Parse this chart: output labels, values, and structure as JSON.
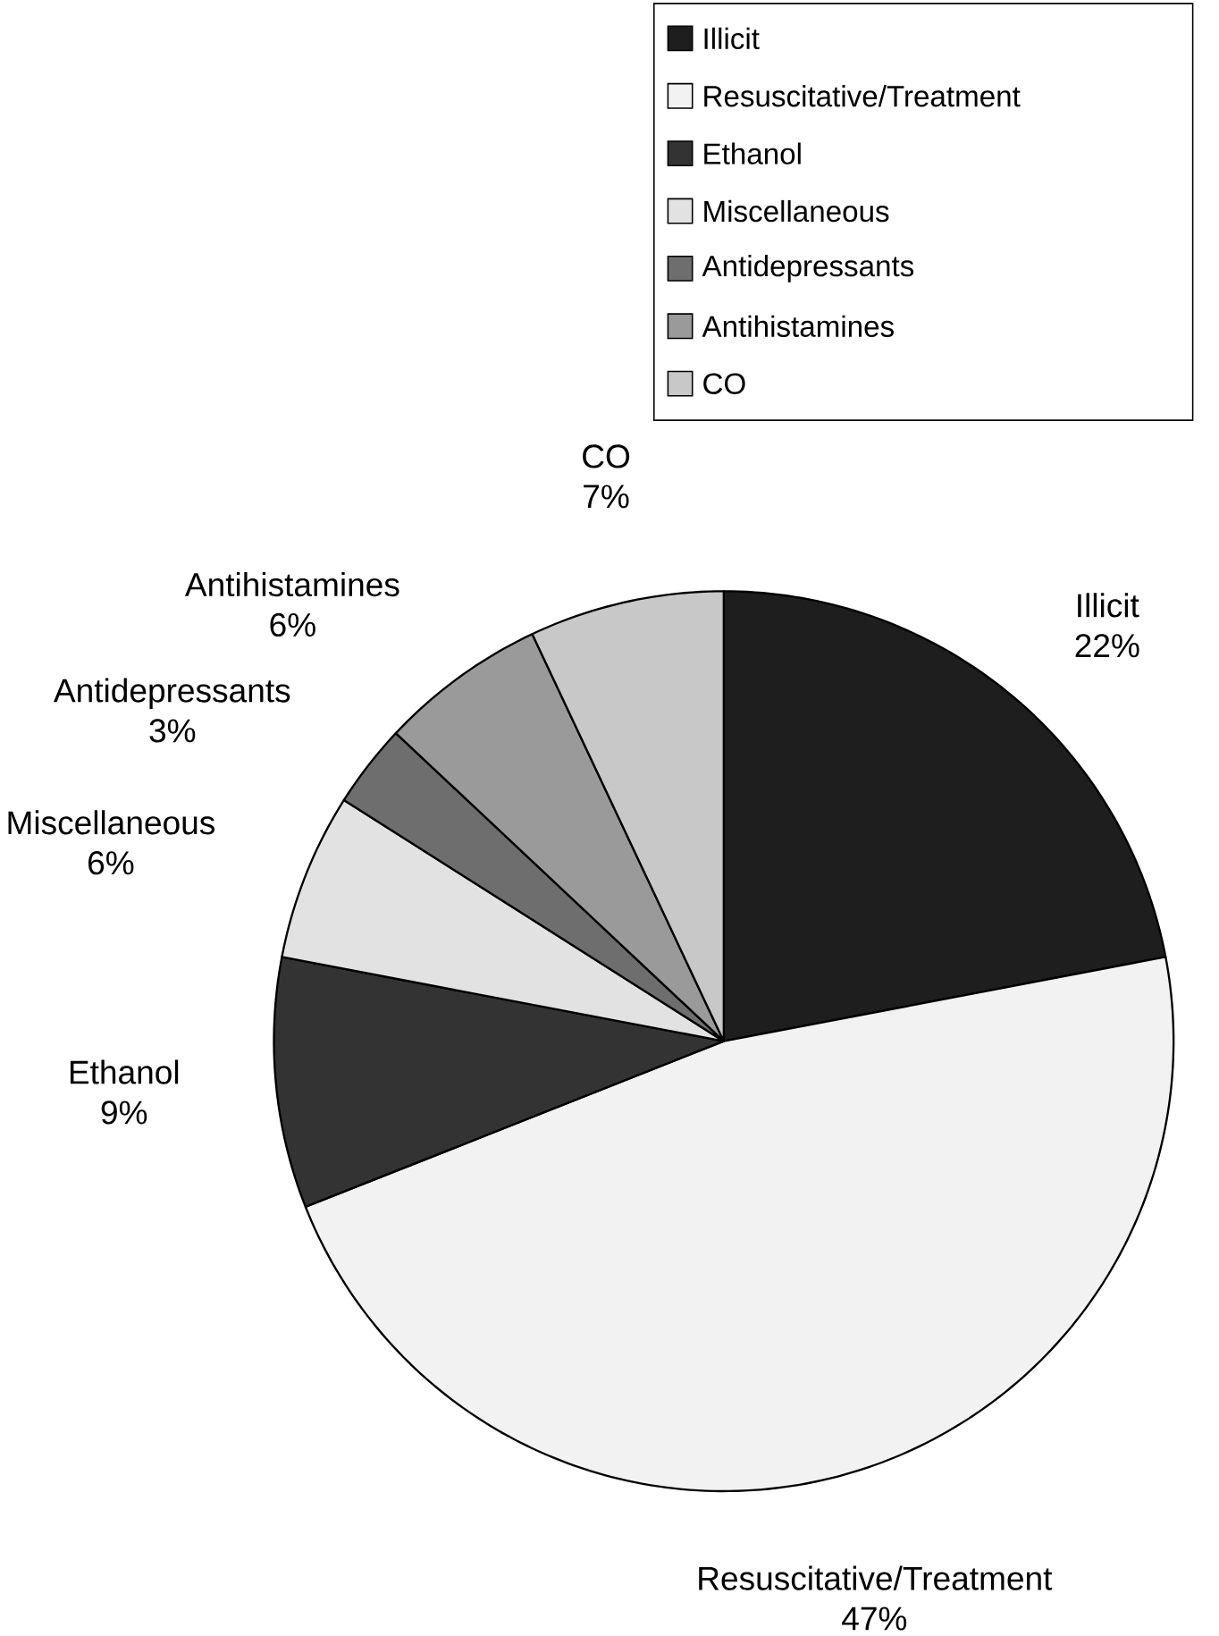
{
  "chart_data": {
    "type": "pie",
    "categories": [
      "Illicit",
      "Resuscitative/Treatment",
      "Ethanol",
      "Miscellaneous",
      "Antidepressants",
      "Antihistamines",
      "CO"
    ],
    "values": [
      22,
      47,
      9,
      6,
      3,
      6,
      7
    ],
    "value_labels": [
      "22%",
      "47%",
      "9%",
      "6%",
      "3%",
      "6%",
      "7%"
    ],
    "colors": [
      "#1e1e1e",
      "#f2f2f2",
      "#333333",
      "#e2e2e2",
      "#6e6e6e",
      "#9a9a9a",
      "#c8c8c8"
    ],
    "legend": "top right"
  }
}
